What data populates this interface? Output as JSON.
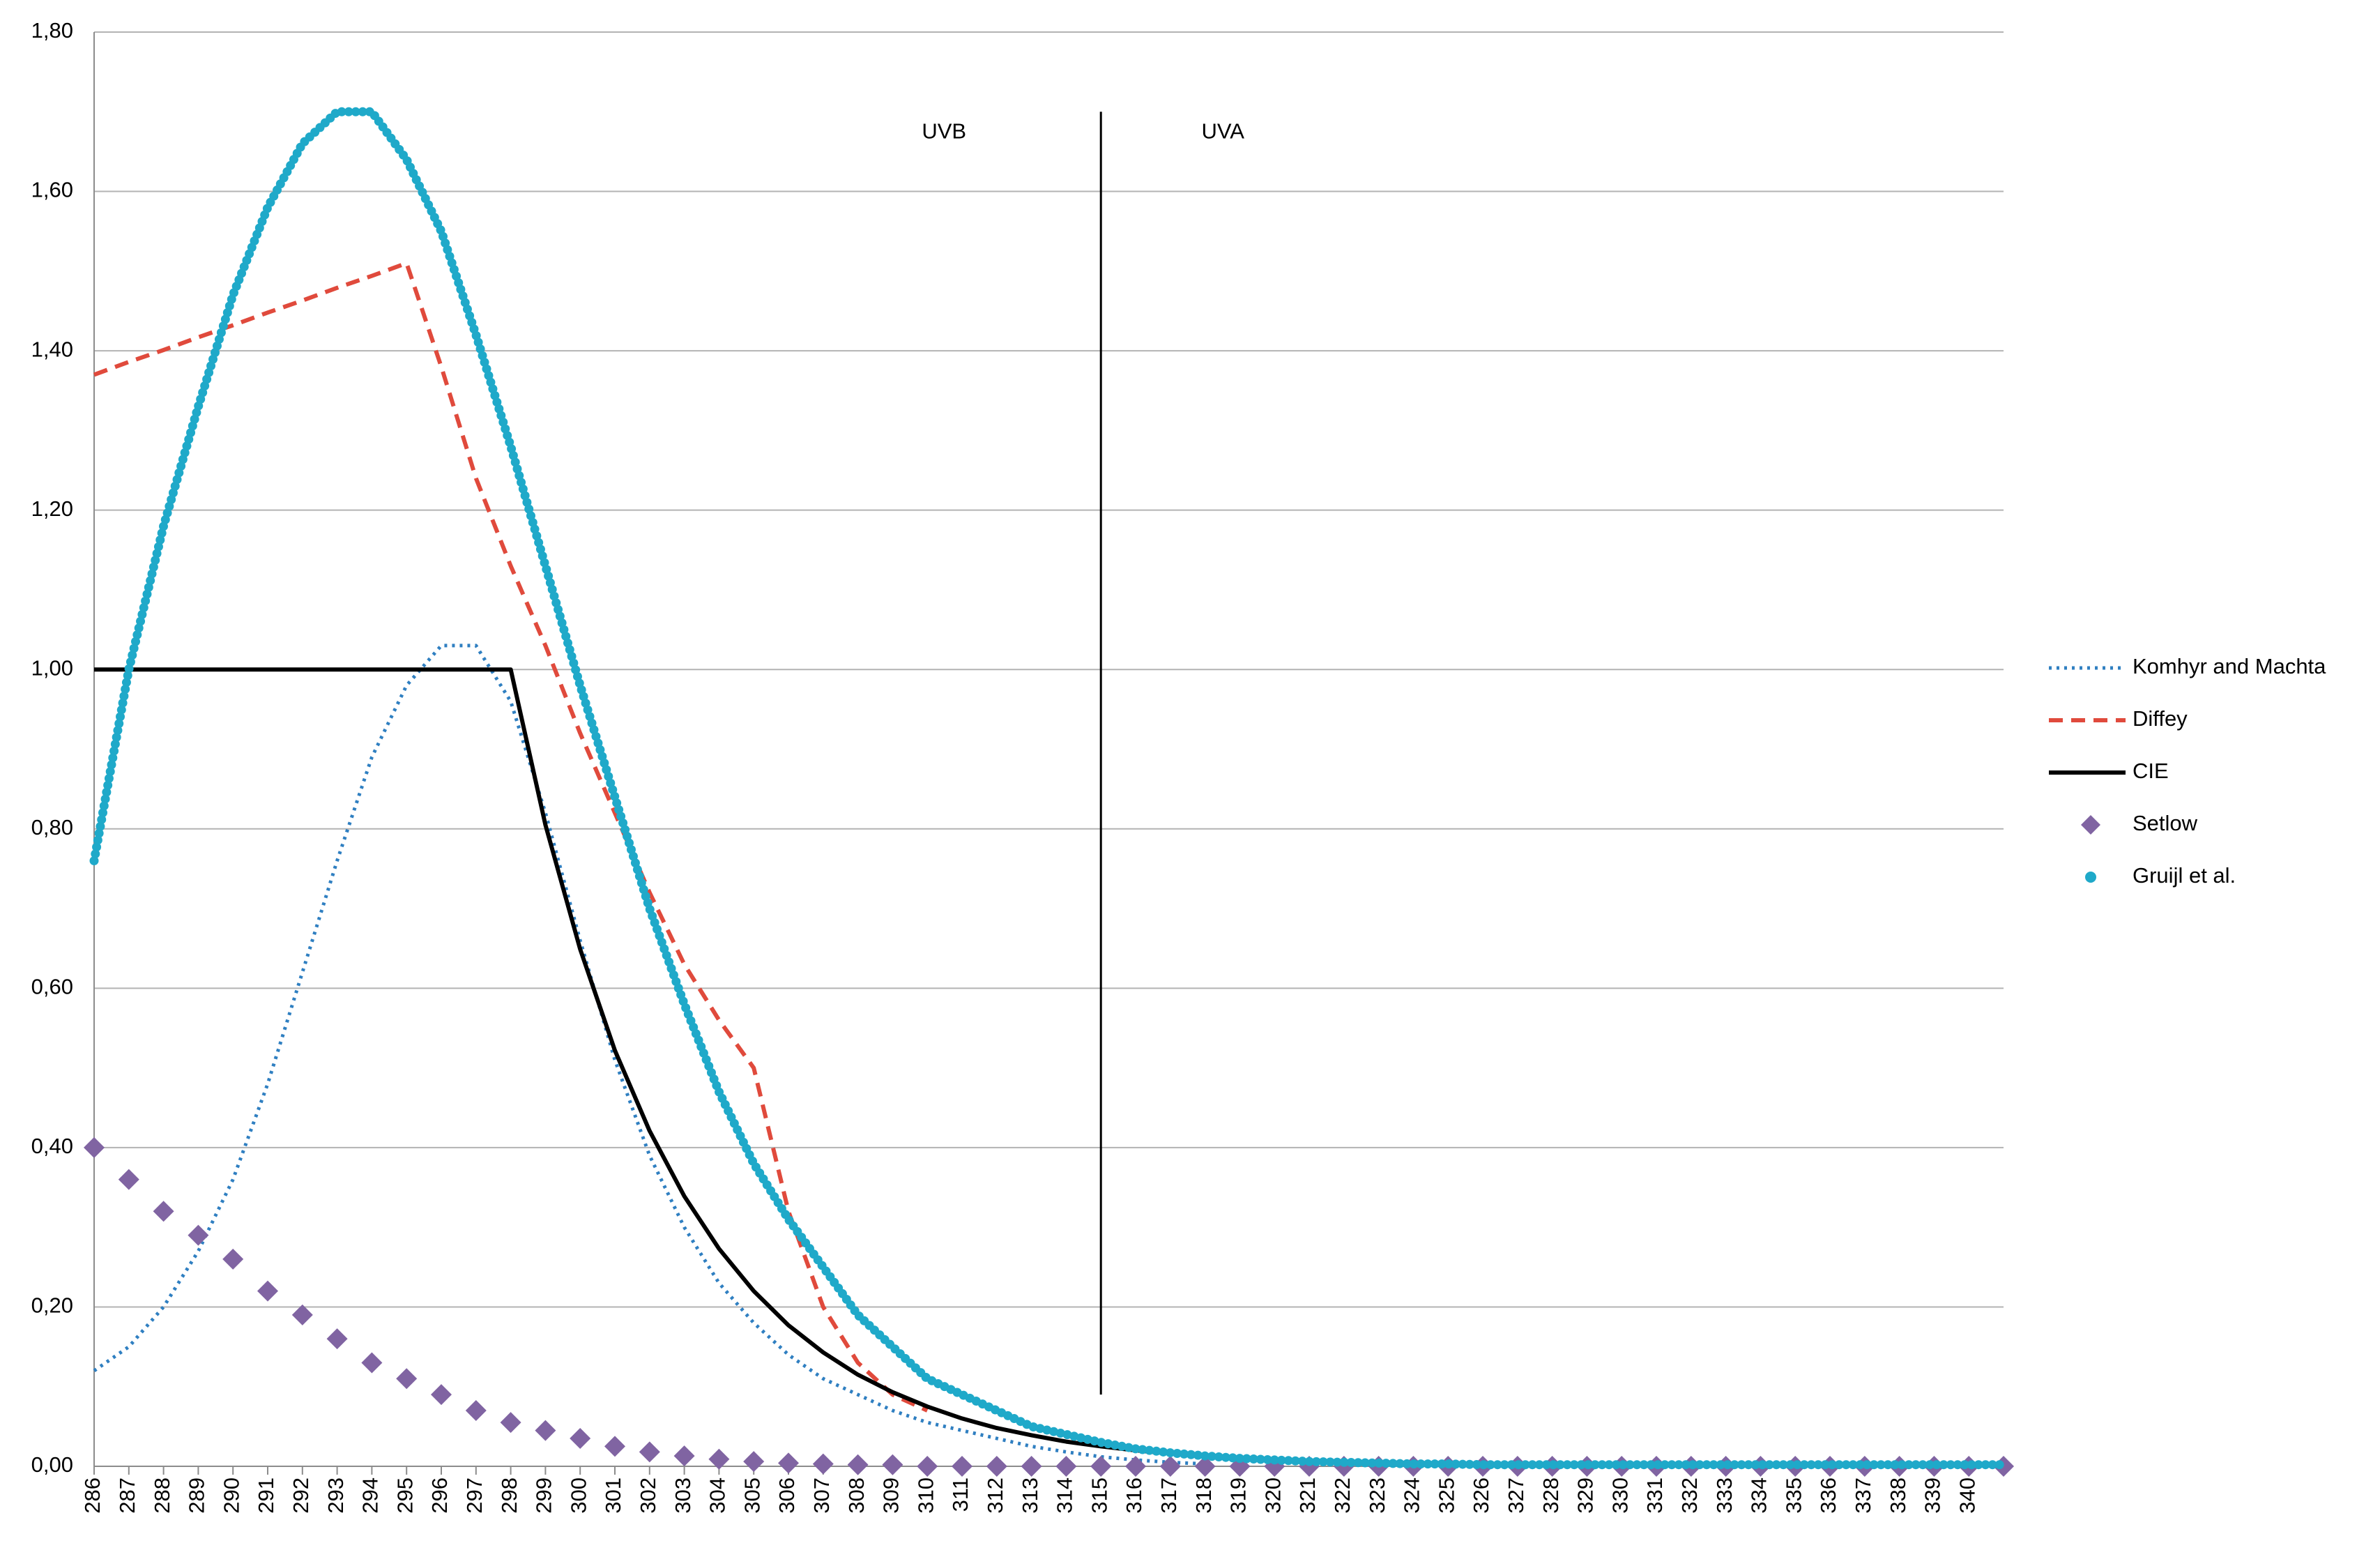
{
  "chart_data": {
    "type": "line",
    "x": [
      286,
      287,
      288,
      289,
      290,
      291,
      292,
      293,
      294,
      295,
      296,
      297,
      298,
      299,
      300,
      301,
      302,
      303,
      304,
      305,
      306,
      307,
      308,
      309,
      310,
      311,
      312,
      313,
      314,
      315,
      316,
      317,
      318,
      319,
      320,
      321,
      322,
      323,
      324,
      325,
      326,
      327,
      328,
      329,
      330,
      331,
      332,
      333,
      334,
      335,
      336,
      337,
      338,
      339,
      340,
      341
    ],
    "xlim": [
      286,
      341
    ],
    "xticks": [
      286,
      287,
      288,
      289,
      290,
      291,
      292,
      293,
      294,
      295,
      296,
      297,
      298,
      299,
      300,
      301,
      302,
      303,
      304,
      305,
      306,
      307,
      308,
      309,
      310,
      311,
      312,
      313,
      314,
      315,
      316,
      317,
      318,
      319,
      320,
      321,
      322,
      323,
      324,
      325,
      326,
      327,
      328,
      329,
      330,
      331,
      332,
      333,
      334,
      335,
      336,
      337,
      338,
      339,
      340
    ],
    "ylim": [
      0,
      1.8
    ],
    "yticks": [
      {
        "value": 0,
        "label": "0,00"
      },
      {
        "value": 0.2,
        "label": "0,20"
      },
      {
        "value": 0.4,
        "label": "0,40"
      },
      {
        "value": 0.6,
        "label": "0,60"
      },
      {
        "value": 0.8,
        "label": "0,80"
      },
      {
        "value": 1.0,
        "label": "1,00"
      },
      {
        "value": 1.2,
        "label": "1,20"
      },
      {
        "value": 1.4,
        "label": "1,40"
      },
      {
        "value": 1.6,
        "label": "1,60"
      },
      {
        "value": 1.8,
        "label": "1,80"
      }
    ],
    "grid": true,
    "legend": "right",
    "annotations": [
      {
        "text": "UVB"
      },
      {
        "text": "UVA"
      }
    ],
    "divider": {
      "x": 315,
      "y": [
        0.09,
        1.7
      ]
    },
    "series": [
      {
        "name": "Komhyr and Machta",
        "color": "#2f7fc1",
        "style": "dotted",
        "values": [
          0.12,
          0.15,
          0.2,
          0.27,
          0.36,
          0.48,
          0.62,
          0.76,
          0.89,
          0.98,
          1.03,
          1.03,
          0.96,
          0.82,
          0.66,
          0.51,
          0.39,
          0.3,
          0.23,
          0.18,
          0.14,
          0.11,
          0.09,
          0.07,
          0.055,
          0.045,
          0.035,
          0.025,
          0.018,
          0.012,
          0.008,
          0.005,
          0.003,
          null,
          null,
          null,
          null,
          null,
          null,
          null,
          null,
          null,
          null,
          null,
          null,
          null,
          null,
          null,
          null,
          null,
          null,
          null,
          null,
          null,
          null,
          null
        ]
      },
      {
        "name": "Diffey",
        "color": "#e04a3c",
        "style": "dashed",
        "values": [
          1.37,
          1.386,
          1.401,
          1.417,
          1.432,
          1.448,
          1.463,
          1.479,
          1.494,
          1.51,
          1.38,
          1.24,
          1.13,
          1.03,
          0.92,
          0.82,
          0.72,
          0.63,
          0.56,
          0.5,
          0.32,
          0.2,
          0.13,
          0.09,
          0.07,
          null,
          null,
          null,
          null,
          null,
          null,
          null,
          null,
          null,
          null,
          null,
          null,
          null,
          null,
          null,
          null,
          null,
          null,
          null,
          null,
          null,
          null,
          null,
          null,
          null,
          null,
          null,
          null,
          null,
          null,
          null
        ]
      },
      {
        "name": "CIE",
        "color": "#000000",
        "style": "solid",
        "values": [
          1,
          1,
          1,
          1,
          1,
          1,
          1,
          1,
          1,
          1,
          1,
          1,
          1,
          0.805,
          0.649,
          0.522,
          0.421,
          0.339,
          0.273,
          0.22,
          0.177,
          0.143,
          0.115,
          0.093,
          0.075,
          0.06,
          0.048,
          0.039,
          0.031,
          0.025,
          0.02,
          0.016,
          0.013,
          0.011,
          0.009,
          0.007,
          0.006,
          0.005,
          0.004,
          0.003,
          0.003,
          0.002,
          0.002,
          0.001,
          0.001,
          0.001,
          0.001,
          0.001,
          0.001,
          0.001,
          0.001,
          0.001,
          0.001,
          0.001,
          0.001,
          0.001
        ]
      },
      {
        "name": "Setlow",
        "color": "#8064a2",
        "style": "diamond",
        "values": [
          0.4,
          0.36,
          0.32,
          0.29,
          0.26,
          0.22,
          0.19,
          0.16,
          0.13,
          0.11,
          0.09,
          0.07,
          0.055,
          0.045,
          0.035,
          0.025,
          0.018,
          0.013,
          0.009,
          0.006,
          0.004,
          0.003,
          0.002,
          0.002,
          0,
          0,
          0,
          0,
          0,
          0,
          0,
          0,
          0,
          0,
          0,
          0,
          0,
          0,
          0,
          0,
          0,
          0,
          0,
          0,
          0,
          0,
          0,
          0,
          0,
          0,
          0,
          0,
          0,
          0,
          0,
          0
        ]
      },
      {
        "name": "Gruijl et al.",
        "color": "#1fa9c9",
        "style": "dots",
        "values": [
          0.76,
          1.0,
          1.18,
          1.33,
          1.47,
          1.58,
          1.66,
          1.7,
          1.7,
          1.64,
          1.55,
          1.42,
          1.28,
          1.13,
          0.98,
          0.84,
          0.7,
          0.58,
          0.47,
          0.38,
          0.31,
          0.25,
          0.19,
          0.15,
          0.11,
          0.09,
          0.07,
          0.05,
          0.04,
          0.03,
          0.022,
          0.017,
          0.013,
          0.01,
          0.008,
          0.006,
          0.005,
          0.004,
          0.003,
          0.003,
          0.002,
          0.002,
          0.002,
          0.002,
          0.002,
          0.002,
          0.002,
          0.002,
          0.002,
          0.002,
          0.002,
          0.002,
          0.002,
          0.002,
          0.002,
          0.002
        ]
      }
    ]
  }
}
